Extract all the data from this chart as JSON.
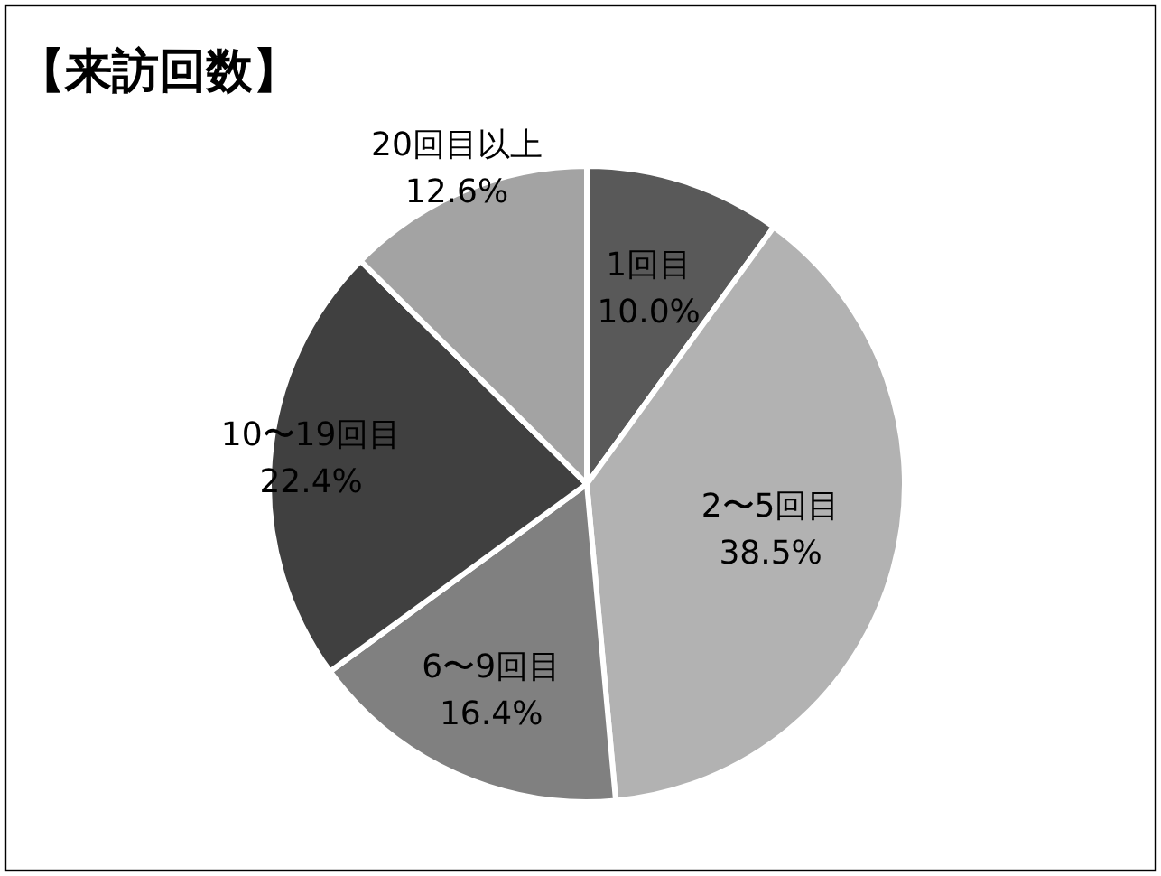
{
  "chart_data": {
    "type": "pie",
    "title": "【来訪回数】",
    "categories": [
      "1回目",
      "2〜5回目",
      "6〜9回目",
      "10〜19回目",
      "20回目以上"
    ],
    "values": [
      10.0,
      38.5,
      16.4,
      22.4,
      12.6
    ],
    "value_labels": [
      "10.0%",
      "38.5%",
      "16.4%",
      "22.4%",
      "12.6%"
    ],
    "colors": [
      "#595959",
      "#b2b2b2",
      "#808080",
      "#404040",
      "#a3a3a3"
    ]
  }
}
